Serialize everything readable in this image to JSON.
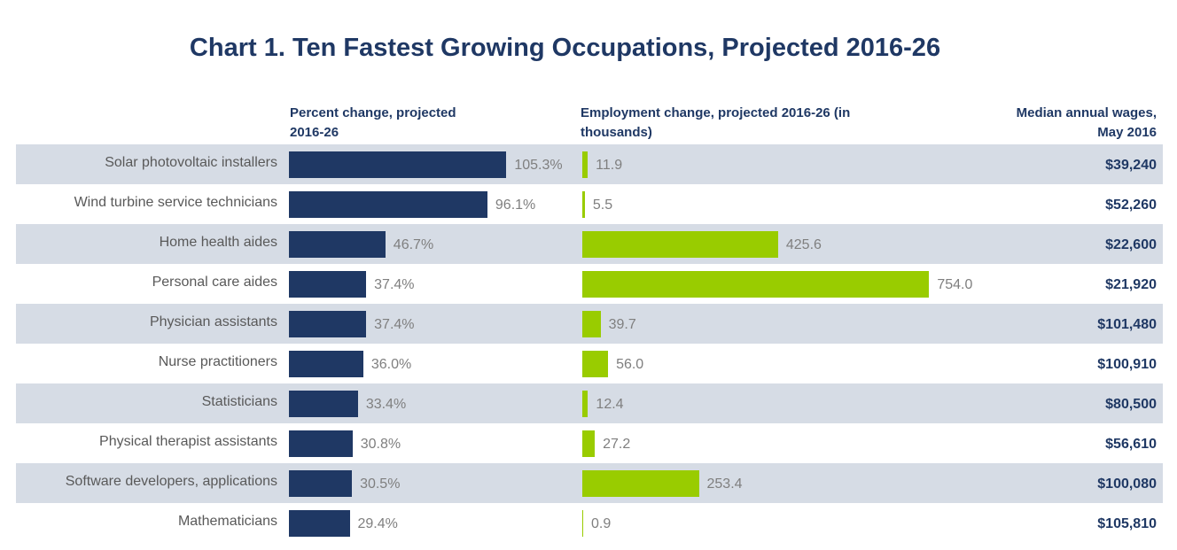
{
  "chart_data": {
    "type": "bar",
    "title": "Chart 1. Ten Fastest Growing Occupations, Projected 2016-26",
    "categories": [
      "Solar photovoltaic installers",
      "Wind turbine service technicians",
      "Home health aides",
      "Personal care aides",
      "Physician assistants",
      "Nurse practitioners",
      "Statisticians",
      "Physical therapist assistants",
      "Software developers, applications",
      "Mathematicians"
    ],
    "series": [
      {
        "name": "Percent change, projected 2016-26",
        "color": "#1f3864",
        "values": [
          105.3,
          96.1,
          46.7,
          37.4,
          37.4,
          36.0,
          33.4,
          30.8,
          30.5,
          29.4
        ],
        "value_labels": [
          "105.3%",
          "96.1%",
          "46.7%",
          "37.4%",
          "37.4%",
          "36.0%",
          "33.4%",
          "30.8%",
          "30.5%",
          "29.4%"
        ]
      },
      {
        "name": "Employment change, projected 2016-26 (in thousands)",
        "color": "#99cc00",
        "values": [
          11.9,
          5.5,
          425.6,
          754.0,
          39.7,
          56.0,
          12.4,
          27.2,
          253.4,
          0.9
        ],
        "value_labels": [
          "11.9",
          "5.5",
          "425.6",
          "754.0",
          "39.7",
          "56.0",
          "12.4",
          "27.2",
          "253.4",
          "0.9"
        ]
      }
    ],
    "wages": {
      "name": "Median annual wages, May 2016",
      "labels": [
        "$39,240",
        "$52,260",
        "$22,600",
        "$21,920",
        "$101,480",
        "$100,910",
        "$80,500",
        "$56,610",
        "$100,080",
        "$105,810"
      ]
    }
  }
}
